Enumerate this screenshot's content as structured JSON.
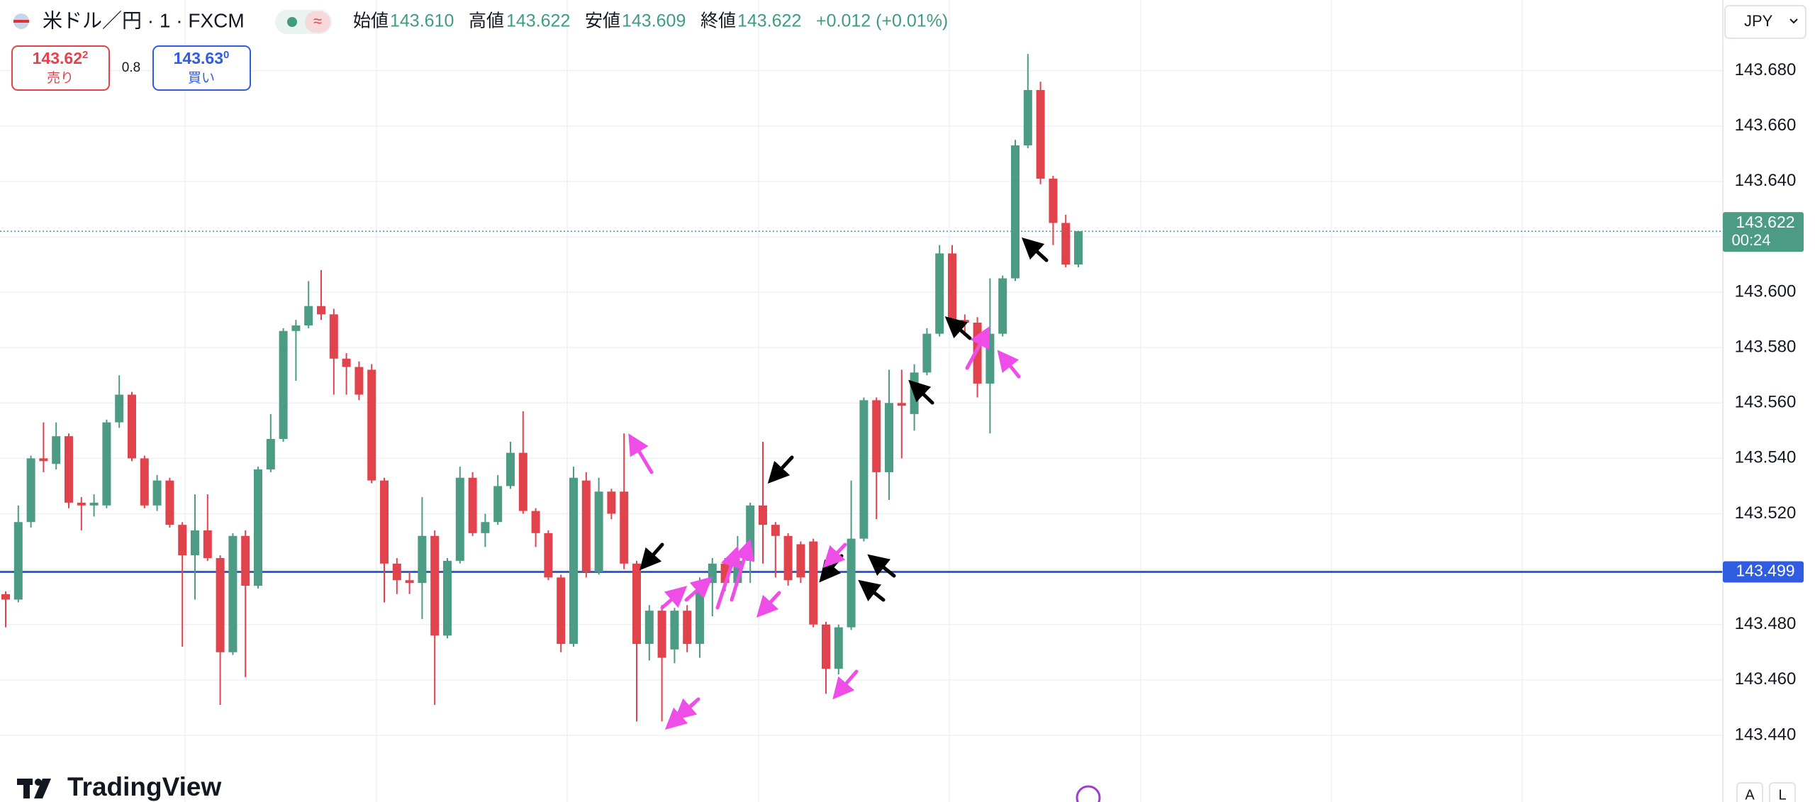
{
  "header": {
    "symbol": "米ドル／円 · 1 · FXCM",
    "open_label": "始値",
    "open": "143.610",
    "high_label": "高値",
    "high": "143.622",
    "low_label": "安値",
    "low": "143.609",
    "close_label": "終値",
    "close": "143.622",
    "change": "+0.012 (+0.01%)"
  },
  "trade": {
    "sell_price": "143.62",
    "sell_pip": "2",
    "sell_label": "売り",
    "spread": "0.8",
    "buy_price": "143.63",
    "buy_pip": "0",
    "buy_label": "買い"
  },
  "currency": "JPY",
  "logo": "TradingView",
  "scale_buttons": [
    "A",
    "L"
  ],
  "chart_data": {
    "type": "candlestick",
    "up_color": "#4c9b84",
    "down_color": "#e1434c",
    "grid": true,
    "ylim": [
      143.43,
      143.7
    ],
    "yticks": [
      {
        "value": 143.44,
        "label": "143.440"
      },
      {
        "value": 143.46,
        "label": "143.460"
      },
      {
        "value": 143.48,
        "label": "143.480"
      },
      {
        "value": 143.5,
        "label": "143.500"
      },
      {
        "value": 143.52,
        "label": "143.520"
      },
      {
        "value": 143.54,
        "label": "143.540"
      },
      {
        "value": 143.56,
        "label": "143.560"
      },
      {
        "value": 143.58,
        "label": "143.580"
      },
      {
        "value": 143.6,
        "label": "143.600"
      },
      {
        "value": 143.62,
        "label": "143.620"
      },
      {
        "value": 143.64,
        "label": "143.640"
      },
      {
        "value": 143.66,
        "label": "143.660"
      },
      {
        "value": 143.68,
        "label": "143.680"
      }
    ],
    "horizontal_line": {
      "value": 143.499,
      "label": "143.499",
      "color": "#2f5ce0"
    },
    "last_price": {
      "value": 143.622,
      "label": "143.622",
      "countdown": "00:24"
    },
    "open": [
      143.491,
      143.489,
      143.517,
      143.54,
      143.538,
      143.548,
      143.524,
      143.523,
      143.523,
      143.553,
      143.563,
      143.54,
      143.523,
      143.532,
      143.516,
      143.505,
      143.514,
      143.504,
      143.47,
      143.512,
      143.494,
      143.536,
      143.547,
      143.586,
      143.588,
      143.595,
      143.592,
      143.576,
      143.573,
      143.572,
      143.532,
      143.502,
      143.496,
      143.495,
      143.512,
      143.476,
      143.503,
      143.533,
      143.513,
      143.517,
      143.53,
      143.542,
      143.521,
      143.513,
      143.497,
      143.473,
      143.532,
      143.499,
      143.528,
      143.528,
      143.502,
      143.473,
      143.485,
      143.471,
      143.485,
      143.473,
      143.495,
      143.502,
      143.495,
      143.503,
      143.523,
      143.516,
      143.512,
      143.509,
      143.51,
      143.48,
      143.464,
      143.479,
      143.511,
      143.561,
      143.535,
      143.56,
      143.556,
      143.571,
      143.585,
      143.614,
      143.59,
      143.589,
      143.567,
      143.585,
      143.605,
      143.653,
      143.673,
      143.641,
      143.625,
      143.61
    ],
    "high": [
      143.492,
      143.523,
      143.541,
      143.553,
      143.553,
      143.549,
      143.526,
      143.527,
      143.554,
      143.57,
      143.564,
      143.541,
      143.534,
      143.533,
      143.517,
      143.527,
      143.527,
      143.505,
      143.513,
      143.514,
      143.537,
      143.556,
      143.587,
      143.59,
      143.604,
      143.608,
      143.594,
      143.578,
      143.575,
      143.574,
      143.533,
      143.504,
      143.499,
      143.526,
      143.514,
      143.504,
      143.537,
      143.535,
      143.52,
      143.534,
      143.546,
      143.557,
      143.522,
      143.514,
      143.498,
      143.537,
      143.535,
      143.533,
      143.529,
      143.549,
      143.503,
      143.487,
      143.487,
      143.486,
      143.487,
      143.497,
      143.504,
      143.504,
      143.512,
      143.524,
      143.546,
      143.517,
      143.513,
      143.51,
      143.511,
      143.481,
      143.48,
      143.532,
      143.562,
      143.562,
      143.572,
      143.572,
      143.574,
      143.587,
      143.617,
      143.617,
      143.592,
      143.591,
      143.605,
      143.606,
      143.655,
      143.686,
      143.676,
      143.642,
      143.628,
      143.622
    ],
    "low": [
      143.479,
      143.488,
      143.515,
      143.535,
      143.536,
      143.522,
      143.514,
      143.519,
      143.522,
      143.551,
      143.539,
      143.522,
      143.521,
      143.515,
      143.472,
      143.489,
      143.503,
      143.451,
      143.469,
      143.461,
      143.493,
      143.535,
      143.546,
      143.568,
      143.587,
      143.59,
      143.563,
      143.563,
      143.561,
      143.531,
      143.488,
      143.491,
      143.491,
      143.482,
      143.451,
      143.475,
      143.502,
      143.512,
      143.508,
      143.516,
      143.529,
      143.52,
      143.508,
      143.496,
      143.47,
      143.472,
      143.497,
      143.498,
      143.518,
      143.5,
      143.445,
      143.467,
      143.445,
      143.466,
      143.47,
      143.468,
      143.483,
      143.492,
      143.494,
      143.495,
      143.502,
      143.497,
      143.494,
      143.495,
      143.479,
      143.455,
      143.462,
      143.478,
      143.51,
      143.518,
      143.525,
      143.54,
      143.55,
      143.57,
      143.584,
      143.587,
      143.585,
      143.562,
      143.549,
      143.584,
      143.604,
      143.652,
      143.639,
      143.617,
      143.609,
      143.609
    ],
    "close": [
      143.489,
      143.517,
      143.54,
      143.539,
      143.548,
      143.524,
      143.523,
      143.524,
      143.553,
      143.563,
      143.54,
      143.523,
      143.532,
      143.516,
      143.505,
      143.514,
      143.504,
      143.47,
      143.512,
      143.494,
      143.536,
      143.547,
      143.586,
      143.588,
      143.595,
      143.592,
      143.576,
      143.573,
      143.563,
      143.532,
      143.502,
      143.496,
      143.495,
      143.512,
      143.476,
      143.503,
      143.533,
      143.513,
      143.517,
      143.53,
      143.542,
      143.521,
      143.513,
      143.497,
      143.473,
      143.533,
      143.499,
      143.528,
      143.52,
      143.502,
      143.473,
      143.485,
      143.468,
      143.485,
      143.473,
      143.495,
      143.502,
      143.495,
      143.503,
      143.523,
      143.516,
      143.512,
      143.496,
      143.497,
      143.48,
      143.464,
      143.479,
      143.511,
      143.561,
      143.535,
      143.56,
      143.559,
      143.571,
      143.585,
      143.614,
      143.59,
      143.589,
      143.567,
      143.585,
      143.605,
      143.653,
      143.673,
      143.641,
      143.625,
      143.61,
      143.622
    ]
  }
}
